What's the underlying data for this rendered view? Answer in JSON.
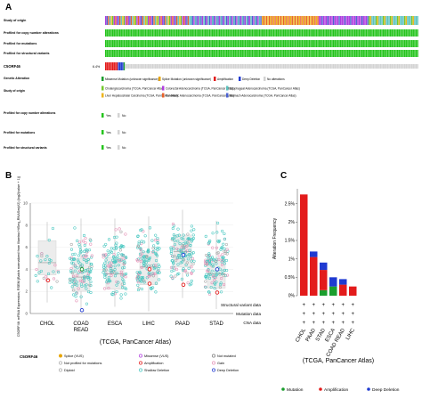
{
  "panel_a": {
    "label": "A",
    "track_labels": {
      "origin": "Study of origin",
      "cna": "Profiled for copy number alterations",
      "mut": "Profiled for mutations",
      "sv": "Profiled for structural variants",
      "gene": "C5ORF46",
      "gene_pct": "6.4%"
    },
    "legend": {
      "genetic_alteration": {
        "title": "Genetic Alteration",
        "items": [
          "Missense Mutation (unknown significance)",
          "Splice Mutation (unknown significance)",
          "Amplification",
          "Deep Deletion",
          "No alterations"
        ]
      },
      "study_of_origin": {
        "title": "Study of origin",
        "items": [
          "Cholangiocarcinoma (TCGA, PanCancer Atlas)",
          "Colorectal Adenocarcinoma (TCGA, PanCancer Atlas)",
          "Esophageal Adenocarcinoma (TCGA, PanCancer Atlas)",
          "Liver Hepatocellular Carcinoma (TCGA, PanCancer Atlas)",
          "Pancreatic Adenocarcinoma (TCGA, PanCancer Atlas)",
          "Stomach Adenocarcinoma (TCGA, PanCancer Atlas)"
        ]
      },
      "cna": {
        "title": "Profiled for copy number alterations",
        "yes": "Yes",
        "no": "No"
      },
      "mut": {
        "title": "Profiled for mutations",
        "yes": "Yes",
        "no": "No"
      },
      "sv": {
        "title": "Profiled for structural variants",
        "yes": "Yes",
        "no": "No"
      }
    }
  },
  "panel_b": {
    "label": "B",
    "ylabel": "C5ORF46: mRNA Expression, RSEM (Batch normalized from Illumina HiSeq_RNASeqV2) (log2(value + 1))",
    "xlabel": "(TCGA, PanCancer Atlas)",
    "legend_title": "C5ORF46",
    "legend_items": [
      "Splice (VUS)",
      "Missense (VUS)",
      "Not mutated",
      "Not profiled for mutations",
      "Amplification",
      "Gain",
      "Diploid",
      "Shallow Deletion",
      "Deep Deletion"
    ]
  },
  "panel_c": {
    "label": "C",
    "ylabel": "Alteration Frequency",
    "xlabel": "(TCGA, PanCancer Atlas)",
    "row_labels": [
      "Structural variant data",
      "Mutation data",
      "CNA data"
    ],
    "plus": "+",
    "legend_items": [
      "Mutation",
      "Amplification",
      "Deep Deletion"
    ]
  },
  "colors": {
    "cholangio": "#73c92b",
    "colorectal": "#b03ddf",
    "esophageal": "#5cc2bd",
    "liver": "#edb51d",
    "pancreatic": "#e8622c",
    "stomach": "#4b62d1",
    "profiled": "#25c41d",
    "missense": "#1a9e2d",
    "amplification": "#e31b1b",
    "deep_deletion": "#1f3ad1",
    "no_alteration": "#d3d3d3",
    "splice": "#e7a400",
    "diploid": "#b7b7b7",
    "shallow_deletion": "#46c7c0",
    "gain": "#f5a8c8"
  },
  "chart_data": [
    {
      "type": "scatter",
      "panel": "B",
      "categories": [
        "CHOL",
        "COAD READ",
        "ESCA",
        "LIHC",
        "PAAD",
        "STAD"
      ],
      "xlabel": "(TCGA, PanCancer Atlas)",
      "ylabel": "C5ORF46: mRNA Expression, RSEM (Batch normalized from Illumina HiSeq_RNASeqV2) (log2(value + 1))",
      "ylim": [
        0,
        10
      ],
      "yticks": [
        0,
        2,
        4,
        6,
        8,
        10
      ],
      "boxes": [
        {
          "category": "CHOL",
          "q1": 3.5,
          "median": 4.6,
          "q3": 6.6,
          "whisker_low": 1.0,
          "whisker_high": 8.3
        },
        {
          "category": "COAD READ",
          "q1": 2.0,
          "median": 3.3,
          "q3": 5.0,
          "whisker_low": 0.2,
          "whisker_high": 8.6
        },
        {
          "category": "ESCA",
          "q1": 2.2,
          "median": 3.6,
          "q3": 5.1,
          "whisker_low": 0.6,
          "whisker_high": 8.6
        },
        {
          "category": "LIHC",
          "q1": 2.6,
          "median": 4.2,
          "q3": 5.6,
          "whisker_low": 0.2,
          "whisker_high": 8.8
        },
        {
          "category": "PAAD",
          "q1": 4.2,
          "median": 5.6,
          "q3": 7.1,
          "whisker_low": 1.4,
          "whisker_high": 9.4
        },
        {
          "category": "STAD",
          "q1": 2.3,
          "median": 3.6,
          "q3": 5.0,
          "whisker_low": 0.4,
          "whisker_high": 8.4
        }
      ],
      "highlighted_points": [
        {
          "category": "CHOL",
          "y": 3.0,
          "status": "Amplification"
        },
        {
          "category": "COAD READ",
          "y": 4.0,
          "status": "Missense (VUS)"
        },
        {
          "category": "COAD READ",
          "y": 0.3,
          "status": "Deep Deletion"
        },
        {
          "category": "LIHC",
          "y": 2.7,
          "status": "Amplification"
        },
        {
          "category": "LIHC",
          "y": 4.0,
          "status": "Amplification"
        },
        {
          "category": "PAAD",
          "y": 2.6,
          "status": "Amplification"
        },
        {
          "category": "PAAD",
          "y": 5.3,
          "status": "Deep Deletion"
        },
        {
          "category": "STAD",
          "y": 4.0,
          "status": "Deep Deletion"
        },
        {
          "category": "STAD",
          "y": 1.9,
          "status": "Amplification"
        }
      ]
    },
    {
      "type": "bar",
      "panel": "C",
      "stacked": true,
      "categories": [
        "CHOL",
        "PAAD",
        "STAD",
        "ESCA",
        "COAD READ",
        "LIHC"
      ],
      "series": [
        {
          "name": "Mutation",
          "values": [
            0,
            0,
            0.15,
            0.25,
            0,
            0
          ]
        },
        {
          "name": "Amplification",
          "values": [
            2.75,
            1.05,
            0.55,
            0,
            0.3,
            0.25
          ]
        },
        {
          "name": "Deep Deletion",
          "values": [
            0,
            0.15,
            0.2,
            0.25,
            0.15,
            0
          ]
        }
      ],
      "xlabel": "(TCGA, PanCancer Atlas)",
      "ylabel": "Alteration Frequency",
      "ylim": [
        0,
        3
      ],
      "yticks": [
        "0%",
        "0.5%",
        "1%",
        "1.5%",
        "2%",
        "2.5%"
      ]
    }
  ]
}
